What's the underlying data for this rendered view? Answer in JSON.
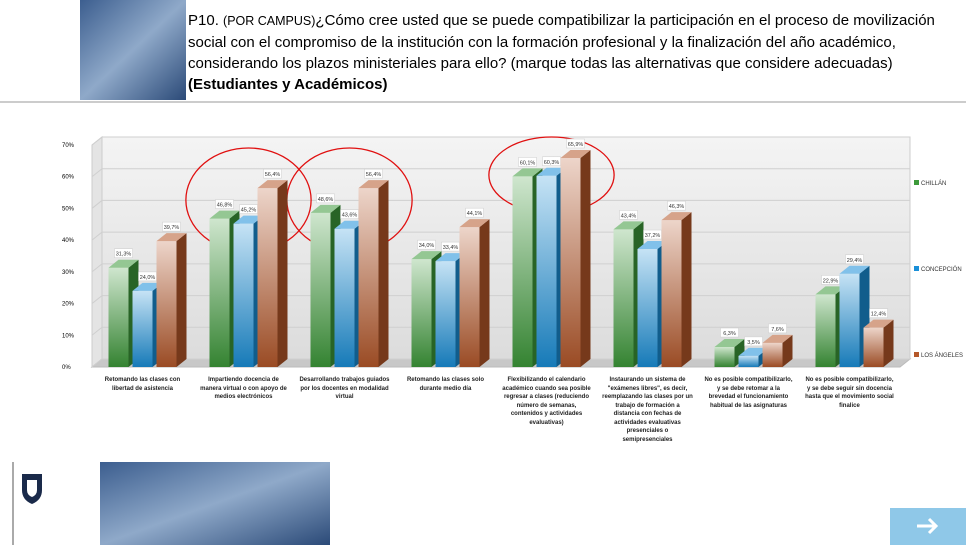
{
  "header": {
    "number": "P10.",
    "tag": "(POR CAMPUS)",
    "question": "¿Cómo cree usted que se puede compatibilizar la participación en el proceso de movilización social con el compromiso de la institución con la formación profesional y la finalización del año académico, considerando los plazos ministeriales para ello? (marque todas las alternativas que considere adecuadas)",
    "audience": "(Estudiantes y Académicos)"
  },
  "chart_data": {
    "type": "bar3d",
    "categories": [
      "Retomando las clases con libertad de asistencia",
      "Impartiendo docencia de manera virtual o con apoyo de medios electrónicos",
      "Desarrollando trabajos guiados por los docentes en modalidad virtual",
      "Retomando las clases solo durante medio día",
      "Flexibilizando el calendario académico cuando sea posible regresar a clases (reduciendo número de semanas, contenidos y actividades evaluativas)",
      "Instaurando un sistema de \"exámenes libres\", es decir, reemplazando las clases por un trabajo de formación a distancia con fechas de actividades evaluativas presenciales o semipresenciales",
      "No es posible compatibilizarlo, y se debe retomar a la brevedad el funcionamiento habitual de las asignaturas",
      "No es posible compatibilizarlo, y se debe seguir sin docencia hasta que el movimiento social finalice"
    ],
    "series": [
      {
        "name": "CHILLÁN",
        "color": "#3d9a3a",
        "values": [
          31.3,
          46.8,
          48.6,
          34.0,
          60.1,
          43.4,
          6.3,
          22.9
        ],
        "value_labels": [
          "31,3%",
          "46,8%",
          "48,6%",
          "34,0%",
          "60,1%",
          "43,4%",
          "6,3%",
          "22,9%"
        ]
      },
      {
        "name": "CONCEPCIÓN",
        "color": "#1a8fd8",
        "values": [
          24.0,
          45.2,
          43.6,
          33.4,
          60.3,
          37.2,
          3.5,
          29.4
        ],
        "value_labels": [
          "24,0%",
          "45,2%",
          "43,6%",
          "33,4%",
          "60,3%",
          "37,2%",
          "3,5%",
          "29,4%"
        ]
      },
      {
        "name": "LOS ÁNGELES",
        "color": "#b5582a",
        "values": [
          39.7,
          56.4,
          56.4,
          44.1,
          65.9,
          46.3,
          7.6,
          12.4
        ],
        "value_labels": [
          "39,7%",
          "56,4%",
          "56,4%",
          "44,1%",
          "65,9%",
          "46,3%",
          "7,6%",
          "12,4%"
        ]
      }
    ],
    "ylim": [
      0,
      70
    ],
    "yticks": [
      {
        "value": 0,
        "label": "0%"
      },
      {
        "value": 10,
        "label": "10%"
      },
      {
        "value": 20,
        "label": "20%"
      },
      {
        "value": 30,
        "label": "30%"
      },
      {
        "value": 40,
        "label": "40%"
      },
      {
        "value": 50,
        "label": "50%"
      },
      {
        "value": 60,
        "label": "60%"
      },
      {
        "value": 70,
        "label": "70%"
      }
    ],
    "grid": true,
    "legend": "right"
  }
}
